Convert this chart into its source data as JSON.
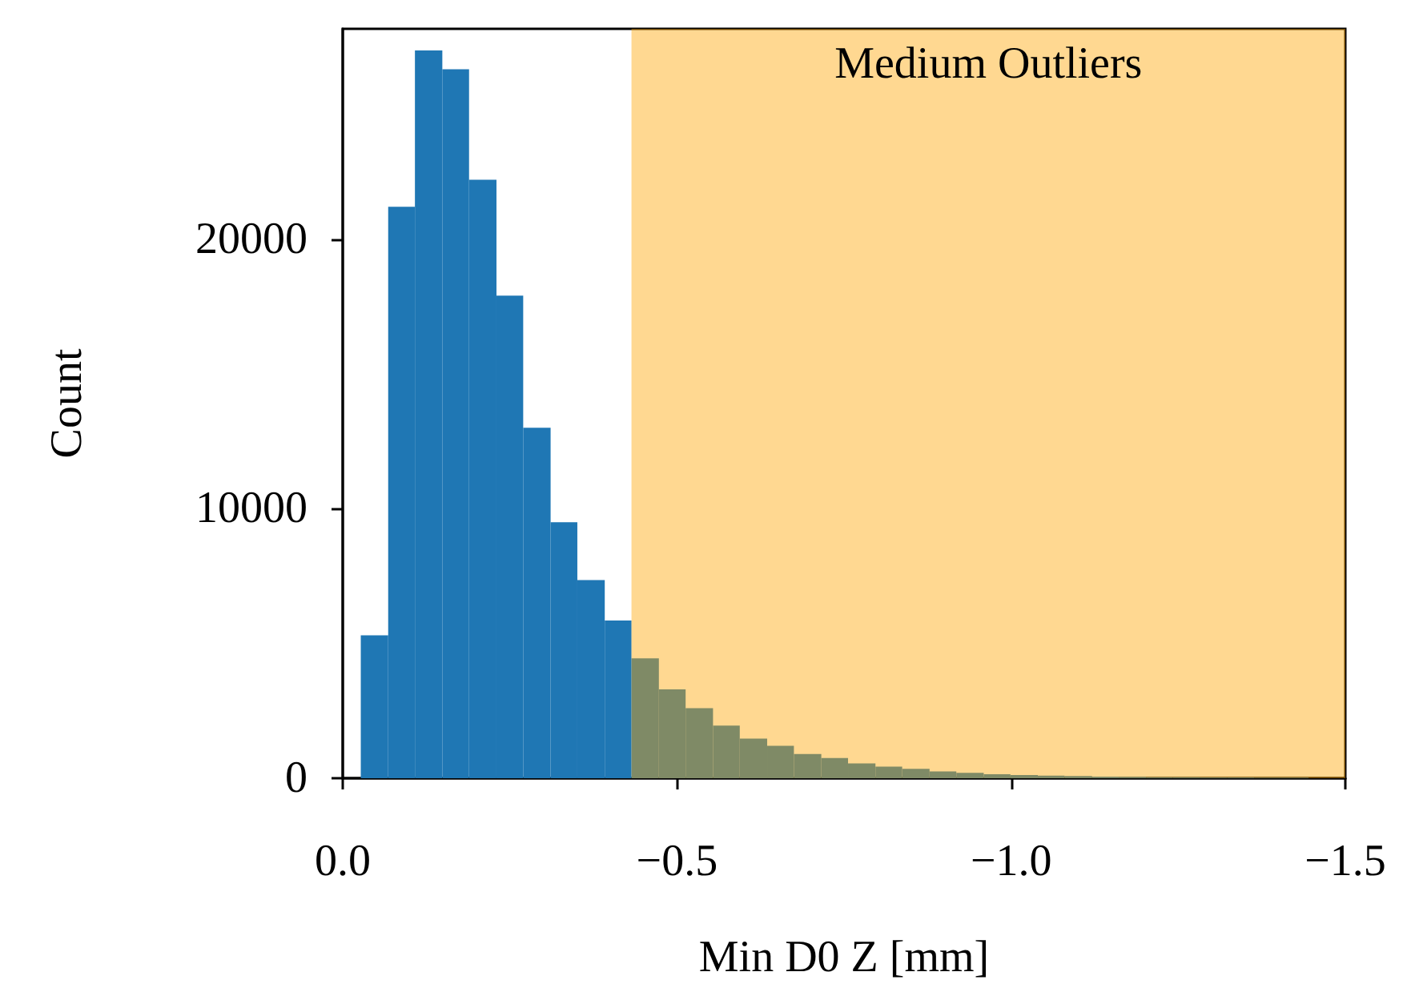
{
  "chart_data": {
    "type": "histogram",
    "xlabel": "Min D0 Z [mm]",
    "ylabel": "Count",
    "bins": [
      -0.027,
      -0.068,
      -0.108,
      -0.149,
      -0.189,
      -0.23,
      -0.27,
      -0.311,
      -0.351,
      -0.392,
      -0.432,
      -0.473,
      -0.513,
      -0.554,
      -0.594,
      -0.635,
      -0.675,
      -0.716,
      -0.756,
      -0.797,
      -0.837,
      -0.878,
      -0.918,
      -0.959,
      -0.999,
      -1.04,
      -1.08,
      -1.121,
      -1.161,
      -1.202,
      -1.242,
      -1.283,
      -1.323,
      -1.364,
      -1.404,
      -1.445
    ],
    "values": [
      5300,
      21200,
      27000,
      26300,
      22200,
      17900,
      13000,
      9500,
      7350,
      5850,
      4450,
      3300,
      2600,
      1950,
      1470,
      1200,
      900,
      750,
      550,
      430,
      350,
      250,
      200,
      150,
      120,
      100,
      80,
      60,
      50,
      40,
      40,
      30,
      30,
      20,
      20
    ],
    "color": "#1f77b4",
    "xlim": [
      0,
      -1.5
    ],
    "xticks": [
      {
        "value": 0,
        "label": "0.0"
      },
      {
        "value": -0.5,
        "label": "−0.5"
      },
      {
        "value": -1,
        "label": "−1.0"
      },
      {
        "value": -1.5,
        "label": "−1.5"
      }
    ],
    "ylim": [
      0,
      27800
    ],
    "yticks": [
      0,
      10000,
      20000
    ],
    "bands": [
      {
        "axis": "x",
        "from": -0.432,
        "to": -1.5,
        "label": "Medium Outliers",
        "color": "#ffa500"
      }
    ],
    "grid": false
  }
}
